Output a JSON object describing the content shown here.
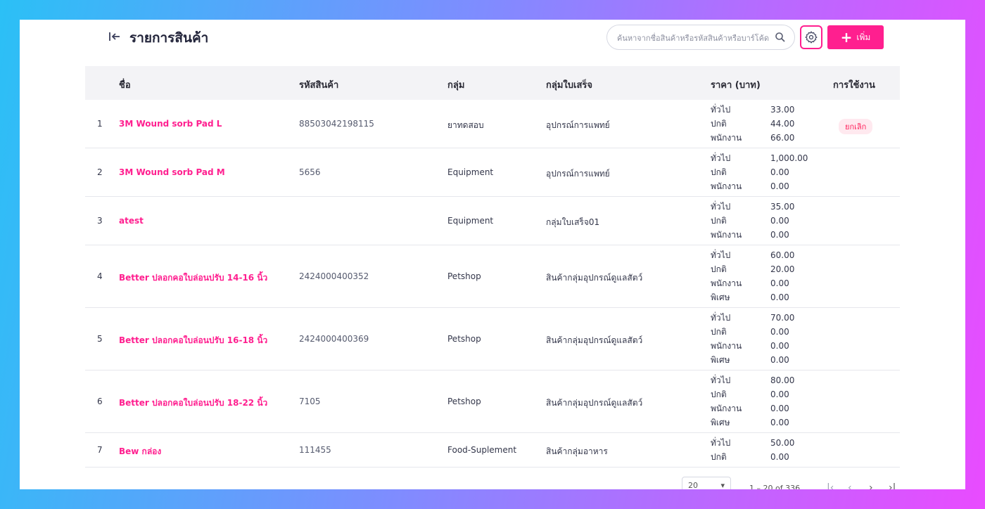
{
  "header": {
    "back_icon": "arrow-bar-left-icon",
    "title": "รายการสินค้า",
    "search_placeholder": "ค้นหาจากชื่อสินค้าหรือรหัสสินค้าหรือบาร์โค้ด",
    "add_label": "เพิ่ม"
  },
  "colors": {
    "accent": "#ff1f8f",
    "badge_bg": "#ffe9ef",
    "header_bg": "#f3f3f6"
  },
  "table": {
    "columns": [
      "ชื่อ",
      "รหัสสินค้า",
      "กลุ่ม",
      "กลุ่มใบเสร็จ",
      "ราคา (บาท)",
      "การใช้งาน"
    ],
    "rows": [
      {
        "index": "1",
        "name": "3M Wound sorb Pad L",
        "code": "88503042198115",
        "group": "ยาทดสอบ",
        "receipt_group": "อุปกรณ์การแพทย์",
        "prices": [
          {
            "label": "ทั่วไป",
            "value": "33.00"
          },
          {
            "label": "ปกติ",
            "value": "44.00"
          },
          {
            "label": "พนักงาน",
            "value": "66.00"
          }
        ],
        "status": "ยกเลิก"
      },
      {
        "index": "2",
        "name": "3M Wound sorb Pad M",
        "code": "5656",
        "group": "Equipment",
        "receipt_group": "อุปกรณ์การแพทย์",
        "prices": [
          {
            "label": "ทั่วไป",
            "value": "1,000.00"
          },
          {
            "label": "ปกติ",
            "value": "0.00"
          },
          {
            "label": "พนักงาน",
            "value": "0.00"
          }
        ],
        "status": ""
      },
      {
        "index": "3",
        "name": "atest",
        "code": "",
        "group": "Equipment",
        "receipt_group": "กลุ่มใบเสร็จ01",
        "prices": [
          {
            "label": "ทั่วไป",
            "value": "35.00"
          },
          {
            "label": "ปกติ",
            "value": "0.00"
          },
          {
            "label": "พนักงาน",
            "value": "0.00"
          }
        ],
        "status": ""
      },
      {
        "index": "4",
        "name": "Better ปลอกคอใบล่อนปรับ 14-16 นิ้ว",
        "code": "2424000400352",
        "group": "Petshop",
        "receipt_group": "สินค้ากลุ่มอุปกรณ์ดูแลสัตว์",
        "prices": [
          {
            "label": "ทั่วไป",
            "value": "60.00"
          },
          {
            "label": "ปกติ",
            "value": "20.00"
          },
          {
            "label": "พนักงาน",
            "value": "0.00"
          },
          {
            "label": "พิเศษ",
            "value": "0.00"
          }
        ],
        "status": ""
      },
      {
        "index": "5",
        "name": "Better ปลอกคอใบล่อนปรับ 16-18 นิ้ว",
        "code": "2424000400369",
        "group": "Petshop",
        "receipt_group": "สินค้ากลุ่มอุปกรณ์ดูแลสัตว์",
        "prices": [
          {
            "label": "ทั่วไป",
            "value": "70.00"
          },
          {
            "label": "ปกติ",
            "value": "0.00"
          },
          {
            "label": "พนักงาน",
            "value": "0.00"
          },
          {
            "label": "พิเศษ",
            "value": "0.00"
          }
        ],
        "status": ""
      },
      {
        "index": "6",
        "name": "Better ปลอกคอใบล่อนปรับ 18-22 นิ้ว",
        "code": "7105",
        "group": "Petshop",
        "receipt_group": "สินค้ากลุ่มอุปกรณ์ดูแลสัตว์",
        "prices": [
          {
            "label": "ทั่วไป",
            "value": "80.00"
          },
          {
            "label": "ปกติ",
            "value": "0.00"
          },
          {
            "label": "พนักงาน",
            "value": "0.00"
          },
          {
            "label": "พิเศษ",
            "value": "0.00"
          }
        ],
        "status": ""
      },
      {
        "index": "7",
        "name": "Bew กล่อง",
        "code": "111455",
        "group": "Food-Suplement",
        "receipt_group": "สินค้ากลุ่มอาหาร",
        "prices": [
          {
            "label": "ทั่วไป",
            "value": "50.00"
          },
          {
            "label": "ปกติ",
            "value": "0.00"
          }
        ],
        "status": ""
      }
    ]
  },
  "pagination": {
    "page_size": "20",
    "range_text": "1 – 20 of 336"
  }
}
